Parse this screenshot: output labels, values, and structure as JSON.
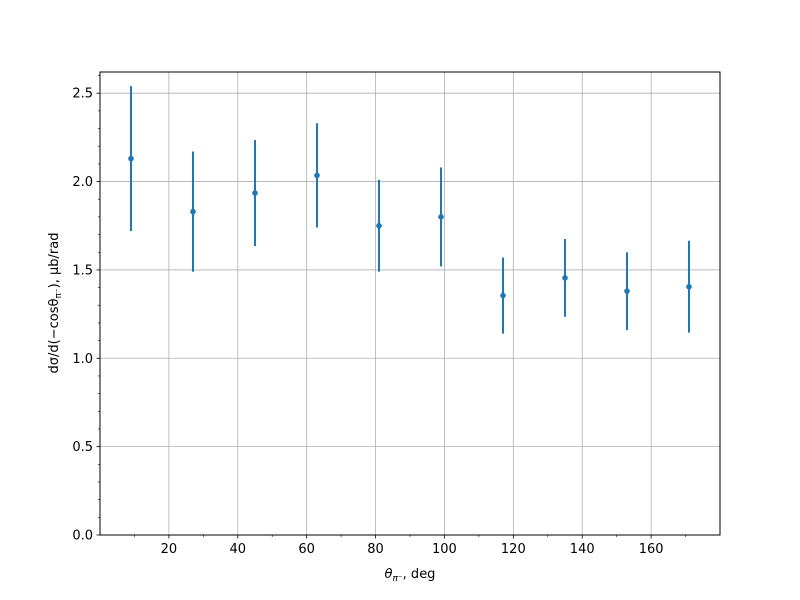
{
  "chart_data": {
    "type": "scatter",
    "xlabel": {
      "prefix": "θ",
      "subscript": "π⁻",
      "suffix": ", deg"
    },
    "ylabel": {
      "prefix": "dσ/d(−cosθ",
      "subscript": "π⁻",
      "suffix": "), μb/rad"
    },
    "xlim": [
      0,
      180
    ],
    "ylim": [
      0,
      2.62
    ],
    "xticks": [
      20,
      40,
      60,
      80,
      100,
      120,
      140,
      160
    ],
    "xticks_minor": [
      10,
      30,
      50,
      70,
      90,
      110,
      130,
      150,
      170
    ],
    "yticks": [
      0.0,
      0.5,
      1.0,
      1.5,
      2.0,
      2.5
    ],
    "ytick_labels": [
      "0.0",
      "0.5",
      "1.0",
      "1.5",
      "2.0",
      "2.5"
    ],
    "yticks_minor": [
      0.1,
      0.2,
      0.3,
      0.4,
      0.6,
      0.7,
      0.8,
      0.9,
      1.1,
      1.2,
      1.3,
      1.4,
      1.6,
      1.7,
      1.8,
      1.9,
      2.1,
      2.2,
      2.3,
      2.4,
      2.6
    ],
    "grid": true,
    "color": "#1f77b4",
    "series": [
      {
        "x": [
          9,
          27,
          45,
          63,
          81,
          99,
          117,
          135,
          153,
          171
        ],
        "y": [
          2.13,
          1.83,
          1.935,
          2.035,
          1.75,
          1.8,
          1.355,
          1.455,
          1.38,
          1.405
        ],
        "yerr": [
          0.41,
          0.34,
          0.3,
          0.295,
          0.26,
          0.28,
          0.215,
          0.22,
          0.22,
          0.26
        ]
      }
    ]
  }
}
